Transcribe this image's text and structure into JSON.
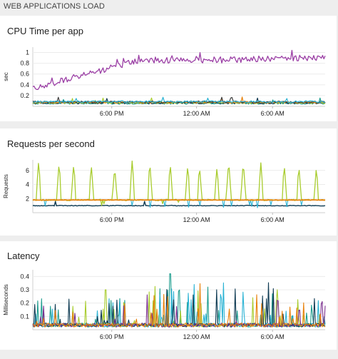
{
  "header": {
    "title": "WEB APPLICATIONS LOAD"
  },
  "chart_data": [
    {
      "type": "line",
      "title": "CPU Time per app",
      "ylabel": "sec",
      "ylim": [
        0,
        1.1
      ],
      "yticks": [
        "1",
        "0.8",
        "0.6",
        "0.4",
        "0.2"
      ],
      "ytick_values": [
        1,
        0.8,
        0.6,
        0.4,
        0.2
      ],
      "xticks": [
        "6:00 PM",
        "12:00 AM",
        "6:00 AM"
      ],
      "colors": {
        "main": "#9b3fa5",
        "lines": [
          "#1f9e8f",
          "#0f3b53",
          "#a8cc2e",
          "#e8820c",
          "#3e3e3e",
          "#2bb3d4"
        ]
      },
      "series_shape": {
        "start": 0.33,
        "end": 0.9,
        "peak_time": 0.35,
        "noise": 0.06
      },
      "grid": true
    },
    {
      "type": "line",
      "title": "Requests per second",
      "ylabel": "Requests",
      "ylim": [
        0,
        7.5
      ],
      "yticks": [
        "6",
        "4",
        "2"
      ],
      "ytick_values": [
        6,
        4,
        2
      ],
      "xticks": [
        "6:00 PM",
        "12:00 AM",
        "6:00 AM"
      ],
      "colors": {
        "spikes": "#a8cc2e",
        "baseline": "#e8820c",
        "low": "#0f3b53",
        "dips": "#2bb3d4"
      },
      "spike_peak": 7.5,
      "baseline_value": 1.8,
      "grid": true
    },
    {
      "type": "line",
      "title": "Latency",
      "ylabel": "Milliseconds",
      "ylim": [
        0,
        0.45
      ],
      "yticks": [
        "0.4",
        "0.3",
        "0.2",
        "0.1"
      ],
      "ytick_values": [
        0.4,
        0.3,
        0.2,
        0.1
      ],
      "xticks": [
        "6:00 PM",
        "12:00 AM",
        "6:00 AM"
      ],
      "colors": {
        "lines": [
          "#1f9e8f",
          "#a8cc2e",
          "#2bb3d4",
          "#0f3b53",
          "#7b2f8f",
          "#e8820c"
        ]
      },
      "max_value": 0.42,
      "grid": true
    }
  ]
}
